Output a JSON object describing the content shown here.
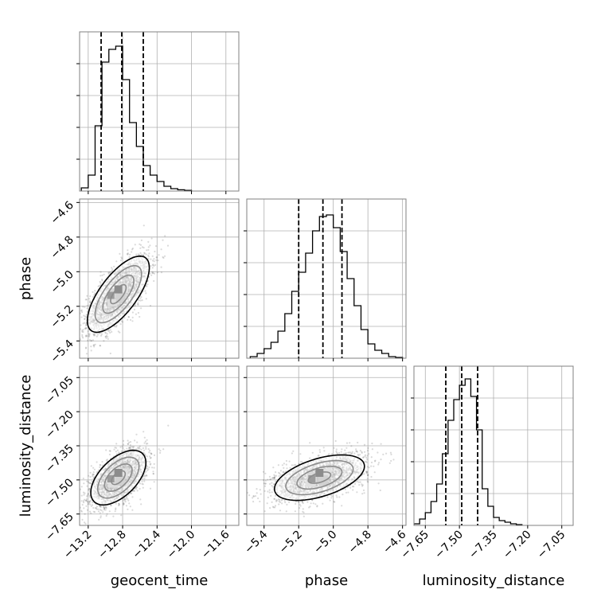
{
  "chart_data": {
    "type": "corner",
    "parameters": [
      "geocent_time",
      "phase",
      "luminosity_distance"
    ],
    "axes": {
      "geocent_time": {
        "label": "geocent_time",
        "range": [
          -13.3,
          -11.45
        ],
        "ticks": [
          -13.2,
          -12.8,
          -12.4,
          -12.0,
          -11.6
        ],
        "tick_labels": [
          "−13.2",
          "−12.8",
          "−12.4",
          "−12.0",
          "−11.6"
        ]
      },
      "phase": {
        "label": "phase",
        "range": [
          -5.5,
          -4.58
        ],
        "ticks": [
          -5.4,
          -5.2,
          -5.0,
          -4.8,
          -4.6
        ],
        "tick_labels": [
          "−5.4",
          "−5.2",
          "−5.0",
          "−4.8",
          "−4.6"
        ]
      },
      "luminosity_distance": {
        "label": "luminosity_distance",
        "range": [
          -7.7,
          -7.0
        ],
        "ticks": [
          -7.65,
          -7.5,
          -7.35,
          -7.2,
          -7.05
        ],
        "tick_labels": [
          "−7.65",
          "−7.50",
          "−7.35",
          "−7.20",
          "−7.05"
        ]
      }
    },
    "histograms": {
      "geocent_time": {
        "bin_edges": [
          -13.28,
          -13.2,
          -13.12,
          -13.04,
          -12.96,
          -12.88,
          -12.8,
          -12.72,
          -12.64,
          -12.56,
          -12.48,
          -12.4,
          -12.32,
          -12.24,
          -12.16,
          -12.08,
          -12.0
        ],
        "counts": [
          0.02,
          0.1,
          0.41,
          0.81,
          0.89,
          0.91,
          0.7,
          0.43,
          0.28,
          0.16,
          0.1,
          0.06,
          0.03,
          0.015,
          0.008,
          0.004
        ],
        "quantiles": [
          -13.05,
          -12.81,
          -12.56
        ]
      },
      "phase": {
        "bin_edges": [
          -5.48,
          -5.44,
          -5.4,
          -5.36,
          -5.32,
          -5.28,
          -5.24,
          -5.2,
          -5.16,
          -5.12,
          -5.08,
          -5.04,
          -5.0,
          -4.96,
          -4.92,
          -4.88,
          -4.84,
          -4.8,
          -4.76,
          -4.72,
          -4.68,
          -4.64,
          -4.6
        ],
        "counts": [
          0.01,
          0.03,
          0.06,
          0.1,
          0.17,
          0.28,
          0.42,
          0.54,
          0.66,
          0.8,
          0.89,
          0.9,
          0.82,
          0.67,
          0.5,
          0.33,
          0.18,
          0.09,
          0.05,
          0.03,
          0.01,
          0.005
        ],
        "quantiles": [
          -5.2,
          -5.06,
          -4.95
        ]
      },
      "luminosity_distance": {
        "bin_edges": [
          -7.7,
          -7.675,
          -7.65,
          -7.625,
          -7.6,
          -7.575,
          -7.55,
          -7.525,
          -7.5,
          -7.475,
          -7.45,
          -7.425,
          -7.4,
          -7.375,
          -7.35,
          -7.325,
          -7.3,
          -7.275,
          -7.25,
          -7.225
        ],
        "counts": [
          0.01,
          0.04,
          0.08,
          0.15,
          0.26,
          0.45,
          0.66,
          0.79,
          0.88,
          0.92,
          0.81,
          0.6,
          0.23,
          0.12,
          0.05,
          0.03,
          0.02,
          0.01,
          0.005
        ],
        "quantiles": [
          -7.56,
          -7.49,
          -7.42
        ]
      }
    },
    "pairs": [
      {
        "x": "geocent_time",
        "y": "phase",
        "mean": [
          -12.85,
          -5.13
        ],
        "std": [
          0.18,
          0.11
        ],
        "corr": 0.7
      },
      {
        "x": "geocent_time",
        "y": "luminosity_distance",
        "mean": [
          -12.85,
          -7.49
        ],
        "std": [
          0.16,
          0.06
        ],
        "corr": 0.55
      },
      {
        "x": "phase",
        "y": "luminosity_distance",
        "mean": [
          -5.08,
          -7.49
        ],
        "std": [
          0.13,
          0.05
        ],
        "corr": 0.5
      }
    ],
    "grid": true,
    "contour_levels": 3
  },
  "colors": {
    "line": "#000000",
    "grid": "#b0b0b0",
    "frame": "#808080",
    "scatter": "#555555"
  }
}
